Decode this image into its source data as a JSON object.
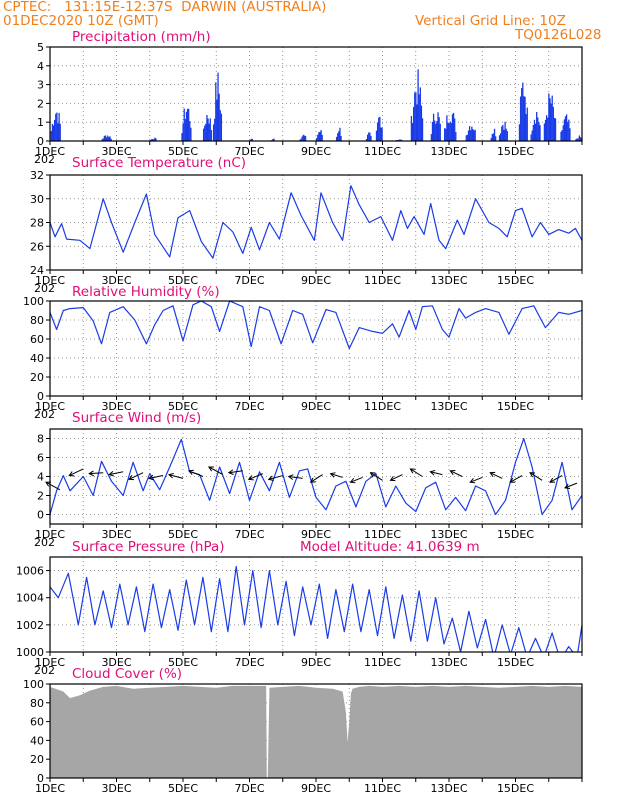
{
  "header": {
    "line1_left": "CPTEC:",
    "line1_coords": "131:15E-12:37S",
    "line1_station": "DARWIN (AUSTRALIA)",
    "line2_left": "01DEC2020 10Z (GMT)",
    "line2_right": "Vertical Grid Line: 10Z",
    "line3_right": "TQ0126L028"
  },
  "colors": {
    "header": "#f07f1e",
    "title": "#e0107a",
    "series": "#1a3ce6",
    "cloud": "#a6a6a6",
    "grid": "#808080"
  },
  "x_axis": {
    "days": 16,
    "tick_labels": [
      "1DEC",
      "3DEC",
      "5DEC",
      "7DEC",
      "9DEC",
      "11DEC",
      "13DEC",
      "15DEC"
    ],
    "year_fragment": "202"
  },
  "panels": [
    {
      "id": "precip",
      "title": "Precipitation (mm/h)",
      "chart_data": {
        "type": "bar",
        "ylim": [
          0,
          5
        ],
        "yticks": [
          "0",
          "1",
          "2",
          "3",
          "4",
          "5"
        ],
        "bursts": [
          [
            0.02,
            0.32,
            2.1
          ],
          [
            1.55,
            1.85,
            0.4
          ],
          [
            3.0,
            3.2,
            0.2
          ],
          [
            3.95,
            4.25,
            2.3
          ],
          [
            4.6,
            4.85,
            1.9
          ],
          [
            4.9,
            5.15,
            3.9
          ],
          [
            6.0,
            6.1,
            0.15
          ],
          [
            6.65,
            6.75,
            0.2
          ],
          [
            7.5,
            7.7,
            0.4
          ],
          [
            8.0,
            8.2,
            0.7
          ],
          [
            8.6,
            8.75,
            0.9
          ],
          [
            9.5,
            9.65,
            0.5
          ],
          [
            9.8,
            10.0,
            1.7
          ],
          [
            10.4,
            10.6,
            0.1
          ],
          [
            10.85,
            11.2,
            3.9
          ],
          [
            11.45,
            11.75,
            2.0
          ],
          [
            11.85,
            12.2,
            2.1
          ],
          [
            12.5,
            12.8,
            1.2
          ],
          [
            13.25,
            13.4,
            0.9
          ],
          [
            13.5,
            13.75,
            1.3
          ],
          [
            14.1,
            14.35,
            4.0
          ],
          [
            14.45,
            14.75,
            2.0
          ],
          [
            14.85,
            15.2,
            2.8
          ],
          [
            15.35,
            15.65,
            1.5
          ],
          [
            15.8,
            16.0,
            0.3
          ]
        ]
      }
    },
    {
      "id": "temp",
      "title": "Surface Temperature (nC)",
      "chart_data": {
        "type": "line",
        "ylim": [
          24,
          32
        ],
        "yticks": [
          "24",
          "26",
          "28",
          "30",
          "32"
        ],
        "x": [
          0,
          0.15,
          0.35,
          0.5,
          0.9,
          1.2,
          1.6,
          1.85,
          2.2,
          2.55,
          2.9,
          3.15,
          3.6,
          3.85,
          4.2,
          4.55,
          4.9,
          5.2,
          5.5,
          5.8,
          6.05,
          6.3,
          6.6,
          6.9,
          7.25,
          7.55,
          7.95,
          8.15,
          8.5,
          8.8,
          9.05,
          9.3,
          9.6,
          9.95,
          10.3,
          10.55,
          10.75,
          10.95,
          11.25,
          11.45,
          11.7,
          11.9,
          12.25,
          12.45,
          12.8,
          13.2,
          13.5,
          13.75,
          14.0,
          14.2,
          14.5,
          14.75,
          15.0,
          15.3,
          15.6,
          15.8,
          16.0
        ],
        "y": [
          28,
          26.8,
          27.9,
          26.6,
          26.5,
          25.8,
          30.0,
          28.0,
          25.5,
          28.0,
          30.4,
          27.0,
          25.1,
          28.4,
          29.0,
          26.4,
          25.0,
          28.0,
          27.2,
          25.4,
          27.6,
          25.7,
          28.0,
          26.6,
          30.5,
          28.6,
          26.5,
          30.5,
          28.0,
          26.5,
          31.1,
          29.5,
          28.0,
          28.5,
          26.5,
          29.0,
          27.5,
          28.5,
          27.0,
          29.6,
          26.5,
          25.8,
          28.2,
          27.0,
          30.0,
          28.0,
          27.5,
          26.8,
          29.0,
          29.2,
          26.8,
          28.0,
          27.0,
          27.4,
          27.1,
          27.5,
          26.5
        ]
      }
    },
    {
      "id": "rh",
      "title": "Relative Humidity (%)",
      "chart_data": {
        "type": "line",
        "ylim": [
          0,
          100
        ],
        "yticks": [
          "0",
          "20",
          "40",
          "60",
          "80",
          "100"
        ],
        "x": [
          0,
          0.2,
          0.4,
          0.6,
          1.0,
          1.3,
          1.55,
          1.8,
          2.2,
          2.55,
          2.9,
          3.15,
          3.4,
          3.7,
          4.0,
          4.3,
          4.55,
          4.85,
          5.1,
          5.4,
          5.8,
          6.05,
          6.3,
          6.6,
          6.95,
          7.3,
          7.6,
          7.9,
          8.3,
          8.6,
          9.0,
          9.3,
          9.7,
          10.0,
          10.3,
          10.5,
          10.8,
          11.0,
          11.2,
          11.5,
          11.8,
          12.0,
          12.3,
          12.5,
          12.8,
          13.1,
          13.5,
          13.8,
          14.2,
          14.55,
          14.9,
          15.3,
          15.6,
          16.0
        ],
        "y": [
          88,
          70,
          90,
          92,
          93,
          79,
          55,
          88,
          94,
          80,
          55,
          75,
          90,
          95,
          58,
          96,
          100,
          94,
          68,
          100,
          94,
          52,
          94,
          90,
          55,
          90,
          86,
          56,
          91,
          88,
          50,
          72,
          68,
          66,
          76,
          62,
          90,
          70,
          94,
          95,
          70,
          62,
          92,
          82,
          88,
          92,
          88,
          65,
          92,
          95,
          72,
          88,
          86,
          90
        ]
      }
    },
    {
      "id": "wind",
      "title": "Surface Wind (m/s)",
      "chart_data": {
        "type": "line",
        "ylim": [
          -1,
          9
        ],
        "yticks": [
          "0",
          "2",
          "4",
          "6",
          "8"
        ],
        "x": [
          0,
          0.2,
          0.4,
          0.6,
          1.0,
          1.3,
          1.55,
          1.85,
          2.2,
          2.5,
          2.8,
          3.0,
          3.3,
          3.6,
          3.95,
          4.2,
          4.5,
          4.8,
          5.1,
          5.4,
          5.7,
          6.0,
          6.3,
          6.6,
          6.9,
          7.2,
          7.5,
          7.75,
          8.0,
          8.3,
          8.6,
          8.9,
          9.2,
          9.5,
          9.8,
          10.1,
          10.4,
          10.7,
          11.0,
          11.3,
          11.6,
          11.9,
          12.2,
          12.5,
          12.8,
          13.1,
          13.4,
          13.7,
          14.0,
          14.25,
          14.5,
          14.8,
          15.1,
          15.4,
          15.7,
          16.0
        ],
        "y": [
          0.0,
          2.5,
          4.1,
          2.5,
          4.0,
          2.0,
          5.6,
          3.5,
          2.0,
          5.5,
          2.5,
          4.3,
          2.6,
          5.0,
          7.9,
          4.5,
          4.2,
          1.5,
          5.0,
          2.2,
          5.5,
          1.5,
          4.5,
          2.5,
          5.5,
          1.8,
          4.6,
          4.8,
          1.8,
          0.5,
          3.0,
          3.5,
          0.8,
          3.5,
          4.3,
          0.8,
          3.0,
          1.2,
          0.3,
          2.8,
          3.4,
          0.5,
          1.8,
          0.4,
          3.0,
          2.5,
          0.0,
          1.5,
          5.5,
          8.0,
          5.0,
          0.0,
          1.5,
          5.5,
          0.5,
          2.0
        ],
        "arrows": [
          [
            0.3,
            2.6,
            3.4
          ],
          [
            1.0,
            4.8,
            4.1
          ],
          [
            1.6,
            4.4,
            4.3
          ],
          [
            2.2,
            4.5,
            4.2
          ],
          [
            2.8,
            4.4,
            3.7
          ],
          [
            3.4,
            4.1,
            3.8
          ],
          [
            4.0,
            3.8,
            4.2
          ],
          [
            4.6,
            4.0,
            4.6
          ],
          [
            5.2,
            4.2,
            5.0
          ],
          [
            5.8,
            4.6,
            4.4
          ],
          [
            6.4,
            4.3,
            3.7
          ],
          [
            7.0,
            4.1,
            3.7
          ],
          [
            7.6,
            3.8,
            4.0
          ],
          [
            8.2,
            4.2,
            3.4
          ],
          [
            8.8,
            3.9,
            4.3
          ],
          [
            9.4,
            3.9,
            3.4
          ],
          [
            10.0,
            3.6,
            4.4
          ],
          [
            10.6,
            4.2,
            3.6
          ],
          [
            11.2,
            4.0,
            4.8
          ],
          [
            11.8,
            4.2,
            4.5
          ],
          [
            12.4,
            4.0,
            4.6
          ],
          [
            13.0,
            3.9,
            3.4
          ],
          [
            13.6,
            3.8,
            4.4
          ],
          [
            14.2,
            4.1,
            3.4
          ],
          [
            14.8,
            3.6,
            4.4
          ],
          [
            15.4,
            4.1,
            3.4
          ],
          [
            15.85,
            3.3,
            2.8
          ]
        ]
      }
    },
    {
      "id": "pressure",
      "title": "Surface Pressure (hPa)",
      "extra": "Model Altitude: 41.0639 m",
      "chart_data": {
        "type": "line",
        "ylim": [
          1000,
          1007
        ],
        "yticks": [
          "1000",
          "1002",
          "1004",
          "1006"
        ],
        "x": [
          0,
          0.25,
          0.55,
          0.85,
          1.1,
          1.35,
          1.6,
          1.85,
          2.1,
          2.35,
          2.6,
          2.85,
          3.1,
          3.35,
          3.6,
          3.85,
          4.1,
          4.35,
          4.6,
          4.85,
          5.1,
          5.35,
          5.6,
          5.85,
          6.1,
          6.35,
          6.6,
          6.85,
          7.1,
          7.35,
          7.6,
          7.85,
          8.1,
          8.35,
          8.6,
          8.85,
          9.1,
          9.35,
          9.6,
          9.85,
          10.1,
          10.35,
          10.6,
          10.85,
          11.1,
          11.35,
          11.6,
          11.85,
          12.1,
          12.35,
          12.6,
          12.85,
          13.1,
          13.35,
          13.6,
          13.85,
          14.1,
          14.35,
          14.6,
          14.85,
          15.1,
          15.35,
          15.6,
          15.85,
          16.0
        ],
        "y": [
          1004.8,
          1004.0,
          1005.8,
          1002.0,
          1005.5,
          1002.0,
          1004.5,
          1001.8,
          1005.0,
          1002.0,
          1004.8,
          1001.5,
          1005.0,
          1001.8,
          1004.6,
          1001.6,
          1005.3,
          1002.0,
          1005.5,
          1001.5,
          1005.4,
          1001.5,
          1006.3,
          1002.0,
          1006.0,
          1001.8,
          1006.0,
          1002.0,
          1005.2,
          1001.2,
          1004.8,
          1002.0,
          1005.0,
          1001.0,
          1004.6,
          1001.5,
          1005.0,
          1001.5,
          1004.6,
          1001.2,
          1004.8,
          1001.0,
          1004.2,
          1000.8,
          1004.5,
          1000.8,
          1004.0,
          1000.6,
          1002.5,
          1000.0,
          1003.0,
          1000.3,
          1002.4,
          999.6,
          1002.0,
          999.8,
          1001.8,
          999.6,
          1001.0,
          999.6,
          1001.4,
          999.4,
          1000.4,
          999.6,
          1002.0
        ]
      }
    },
    {
      "id": "cloud",
      "title": "Cloud Cover (%)",
      "chart_data": {
        "type": "area",
        "ylim": [
          0,
          100
        ],
        "yticks": [
          "0",
          "20",
          "40",
          "60",
          "80",
          "100"
        ],
        "x": [
          0,
          0.4,
          0.6,
          0.9,
          1.2,
          1.6,
          2.0,
          2.5,
          3.0,
          3.5,
          4.0,
          4.5,
          5.0,
          5.5,
          6.0,
          6.5,
          6.52,
          6.55,
          6.6,
          7.0,
          7.5,
          8.0,
          8.5,
          8.8,
          8.9,
          8.95,
          9.0,
          9.05,
          9.1,
          9.3,
          9.6,
          10.0,
          10.5,
          11.0,
          11.5,
          12.0,
          12.5,
          13.0,
          13.5,
          14.0,
          14.5,
          15.0,
          15.5,
          16.0
        ],
        "y": [
          97,
          92,
          85,
          88,
          93,
          97,
          98,
          95,
          96,
          97,
          98,
          97,
          96,
          98,
          98,
          98,
          0,
          0,
          96,
          97,
          98,
          96,
          95,
          92,
          70,
          38,
          60,
          90,
          95,
          97,
          98,
          97,
          98,
          97,
          98,
          97,
          98,
          97,
          96,
          97,
          98,
          97,
          98,
          97
        ]
      }
    }
  ]
}
